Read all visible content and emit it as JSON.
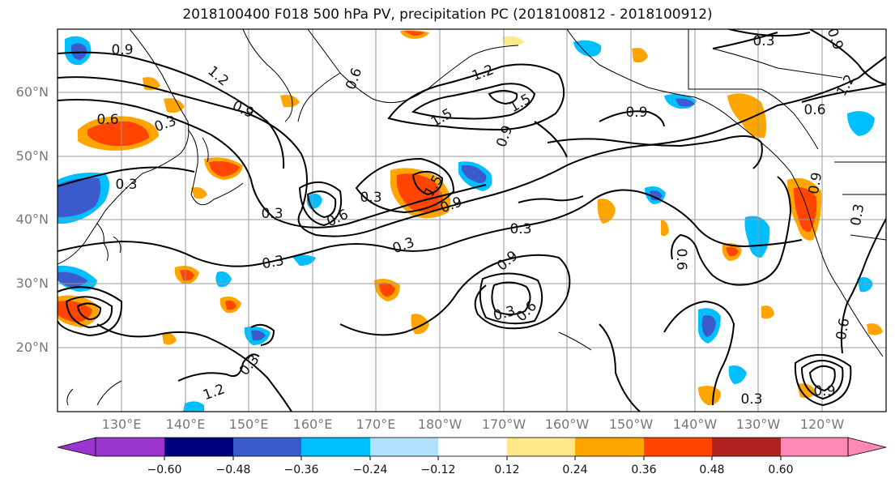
{
  "title": "2018100400 F018 500 hPa PV, precipitation PC (2018100812 - 2018100912)",
  "lat_labels": [
    "60°N",
    "50°N",
    "40°N",
    "30°N",
    "20°N"
  ],
  "lon_labels": [
    "130°E",
    "140°E",
    "150°E",
    "160°E",
    "170°E",
    "180°W",
    "170°W",
    "160°W",
    "150°W",
    "140°W",
    "130°W",
    "120°W"
  ],
  "contour_labels": [
    "0.9",
    "1.2",
    "0.6",
    "0.3",
    "0.9",
    "0.6",
    "1.5",
    "1.2",
    "1.5",
    "0.9",
    "0.9",
    "0.3",
    "0.9",
    "1.2",
    "0.6",
    "0.3",
    "0.3",
    "0.3",
    "0.6",
    "1.5",
    "0.9",
    "0.3",
    "0.3",
    "0.3",
    "0.9",
    "0.6",
    "0.3",
    "0.9",
    "0.3",
    "0.6",
    "0.6",
    "0.3",
    "0.9",
    "0.3",
    "1.2"
  ],
  "colorbar": {
    "ticks": [
      "−0.60",
      "−0.48",
      "−0.36",
      "−0.24",
      "−0.12",
      "0.12",
      "0.24",
      "0.36",
      "0.48",
      "0.60"
    ],
    "colors": [
      "#9a35d0",
      "#00007f",
      "#3b5bcc",
      "#00bfff",
      "#b0e2ff",
      "#ffffff",
      "#ffe88a",
      "#ffa500",
      "#ff4500",
      "#b22222",
      "#ff88b4"
    ]
  }
}
